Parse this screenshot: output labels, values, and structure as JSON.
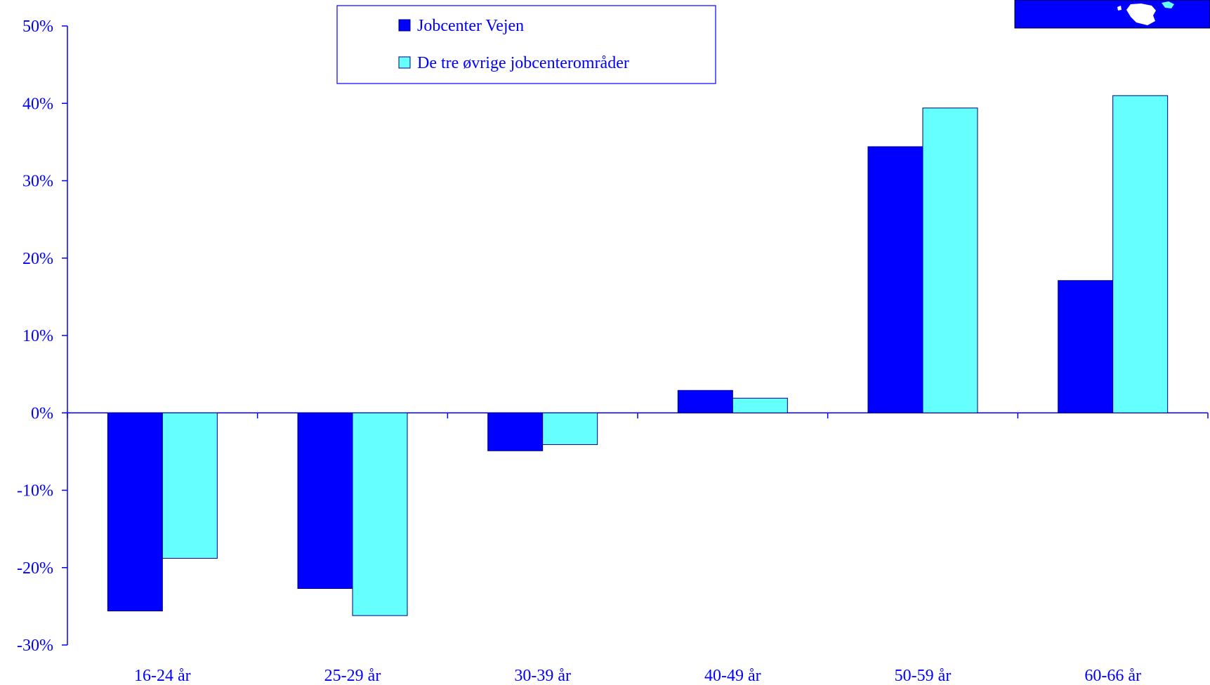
{
  "chart_data": {
    "type": "bar",
    "title": "",
    "xlabel": "",
    "ylabel": "",
    "categories": [
      "16-24 år",
      "25-29 år",
      "30-39 år",
      "40-49 år",
      "50-59 år",
      "60-66 år"
    ],
    "series": [
      {
        "name": "Jobcenter Vejen",
        "color": "#0000ff",
        "values": [
          -25.6,
          -22.7,
          -4.9,
          2.9,
          34.4,
          17.1
        ]
      },
      {
        "name": "De tre øvrige jobcenterområder",
        "color": "#66ffff",
        "values": [
          -18.8,
          -26.2,
          -4.1,
          1.9,
          39.4,
          41.0
        ]
      }
    ],
    "ylim": [
      -30,
      50
    ],
    "yticks": [
      50,
      40,
      30,
      20,
      10,
      0,
      -10,
      -20,
      -30
    ],
    "ytick_labels": [
      "50%",
      "40%",
      "30%",
      "20%",
      "10%",
      "0%",
      "-10%",
      "-20%",
      "-30%"
    ],
    "legend_position": "top-center",
    "grid": false,
    "axis_color": "#0000ff"
  },
  "logo": {
    "color": "#0000ff"
  }
}
